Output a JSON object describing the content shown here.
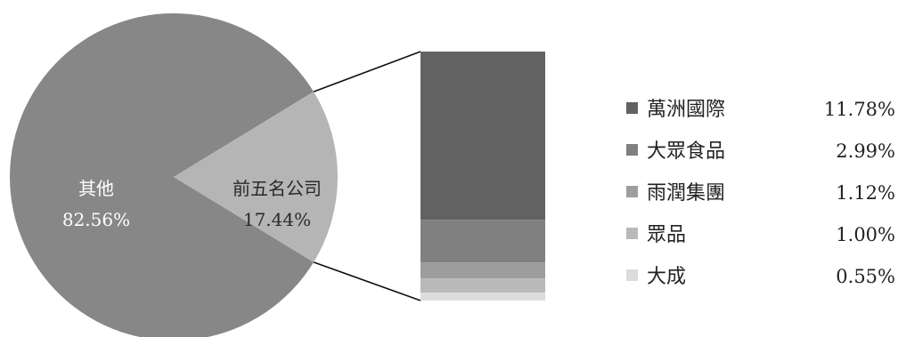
{
  "chart_data": {
    "type": "pie",
    "pie": {
      "slices": [
        {
          "label": "其他",
          "value": 82.56,
          "display": "82.56%",
          "color": "#878787"
        },
        {
          "label": "前五名公司",
          "value": 17.44,
          "display": "17.44%",
          "color": "#b5b5b5"
        }
      ]
    },
    "breakdown": {
      "type": "stacked-bar",
      "of": "前五名公司",
      "items": [
        {
          "label": "萬洲國際",
          "value": 11.78,
          "display": "11.78%",
          "color": "#626262"
        },
        {
          "label": "大眾食品",
          "value": 2.99,
          "display": "2.99%",
          "color": "#808080"
        },
        {
          "label": "雨潤集團",
          "value": 1.12,
          "display": "1.12%",
          "color": "#9d9d9d"
        },
        {
          "label": "眾品",
          "value": 1.0,
          "display": "1.00%",
          "color": "#b9b9b9"
        },
        {
          "label": "大成",
          "value": 0.55,
          "display": "0.55%",
          "color": "#dcdcdc"
        }
      ]
    }
  }
}
